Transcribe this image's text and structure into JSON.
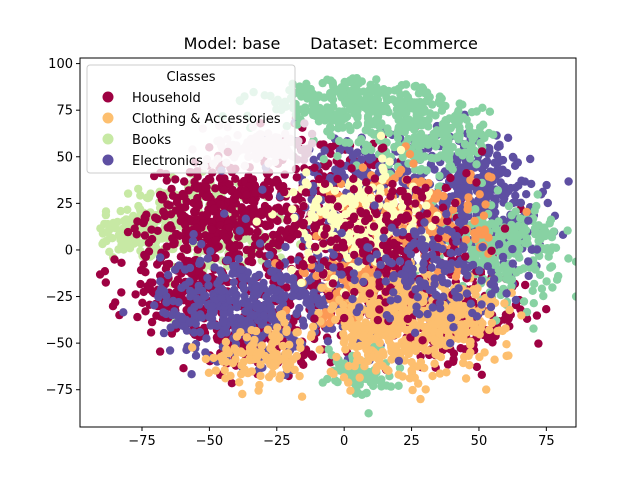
{
  "chart_data": {
    "type": "scatter",
    "title": {
      "model": "Model: base",
      "dataset": "Dataset: Ecommerce"
    },
    "xlim": [
      -98,
      86
    ],
    "ylim": [
      -95,
      103
    ],
    "x_ticks": [
      -75,
      -50,
      -25,
      0,
      25,
      50,
      75
    ],
    "x_tick_labels": [
      "−75",
      "−50",
      "−25",
      "0",
      "25",
      "50",
      "75"
    ],
    "y_ticks": [
      -75,
      -50,
      -25,
      0,
      25,
      50,
      75,
      100
    ],
    "y_tick_labels": [
      "−75",
      "−50",
      "−25",
      "0",
      "25",
      "50",
      "75",
      "100"
    ],
    "legend": {
      "title": "Classes",
      "placement": "upper-left",
      "entries": [
        {
          "label": "Household",
          "color": "#9e0142"
        },
        {
          "label": "Clothing & Accessories",
          "color": "#fdbf6f"
        },
        {
          "label": "Books",
          "color": "#c7e9a4"
        },
        {
          "label": "Electronics",
          "color": "#5e4fa2"
        }
      ]
    },
    "extra_class_colors": [
      "#88d2a3",
      "#fc9955",
      "#fefebd",
      "#e8d4e0"
    ],
    "clusters": [
      {
        "color": "#c7e9a4",
        "cx": -75,
        "cy": 10,
        "sx": 10,
        "sy": 8,
        "n": 140
      },
      {
        "color": "#c7e9a4",
        "cx": -45,
        "cy": 5,
        "sx": 12,
        "sy": 10,
        "n": 120
      },
      {
        "color": "#c7e9a4",
        "cx": -55,
        "cy": 30,
        "sx": 10,
        "sy": 6,
        "n": 60
      },
      {
        "color": "#9e0142",
        "cx": -45,
        "cy": 20,
        "sx": 14,
        "sy": 12,
        "n": 320
      },
      {
        "color": "#9e0142",
        "cx": -60,
        "cy": -25,
        "sx": 12,
        "sy": 12,
        "n": 200
      },
      {
        "color": "#9e0142",
        "cx": -5,
        "cy": 10,
        "sx": 22,
        "sy": 28,
        "n": 420
      },
      {
        "color": "#9e0142",
        "cx": 40,
        "cy": -35,
        "sx": 14,
        "sy": 12,
        "n": 220
      },
      {
        "color": "#9e0142",
        "cx": -30,
        "cy": -45,
        "sx": 10,
        "sy": 10,
        "n": 140
      },
      {
        "color": "#5e4fa2",
        "cx": -40,
        "cy": -30,
        "sx": 14,
        "sy": 14,
        "n": 320
      },
      {
        "color": "#5e4fa2",
        "cx": 50,
        "cy": 25,
        "sx": 12,
        "sy": 20,
        "n": 380
      },
      {
        "color": "#5e4fa2",
        "cx": 10,
        "cy": 40,
        "sx": 18,
        "sy": 12,
        "n": 160
      },
      {
        "color": "#5e4fa2",
        "cx": 0,
        "cy": -15,
        "sx": 18,
        "sy": 18,
        "n": 200
      },
      {
        "color": "#88d2a3",
        "cx": 5,
        "cy": 80,
        "sx": 20,
        "sy": 8,
        "n": 320
      },
      {
        "color": "#88d2a3",
        "cx": 30,
        "cy": 60,
        "sx": 14,
        "sy": 10,
        "n": 200
      },
      {
        "color": "#88d2a3",
        "cx": 60,
        "cy": 0,
        "sx": 10,
        "sy": 12,
        "n": 220
      },
      {
        "color": "#88d2a3",
        "cx": 5,
        "cy": -65,
        "sx": 6,
        "sy": 7,
        "n": 80
      },
      {
        "color": "#fc9955",
        "cx": 25,
        "cy": 15,
        "sx": 14,
        "sy": 15,
        "n": 230
      },
      {
        "color": "#fc9955",
        "cx": 5,
        "cy": -20,
        "sx": 10,
        "sy": 10,
        "n": 100
      },
      {
        "color": "#fdbf6f",
        "cx": 20,
        "cy": -40,
        "sx": 14,
        "sy": 14,
        "n": 450
      },
      {
        "color": "#fdbf6f",
        "cx": -30,
        "cy": -55,
        "sx": 9,
        "sy": 8,
        "n": 110
      },
      {
        "color": "#fdbf6f",
        "cx": 45,
        "cy": -35,
        "sx": 8,
        "sy": 8,
        "n": 100
      },
      {
        "color": "#fefebd",
        "cx": 5,
        "cy": 15,
        "sx": 12,
        "sy": 14,
        "n": 240
      },
      {
        "color": "#e8d4e0",
        "cx": -30,
        "cy": 55,
        "sx": 9,
        "sy": 5,
        "n": 130
      },
      {
        "color": "#9e0142",
        "cx": 15,
        "cy": 5,
        "sx": 18,
        "sy": 22,
        "n": 220
      },
      {
        "color": "#5e4fa2",
        "cx": 30,
        "cy": -10,
        "sx": 14,
        "sy": 14,
        "n": 160
      }
    ]
  }
}
